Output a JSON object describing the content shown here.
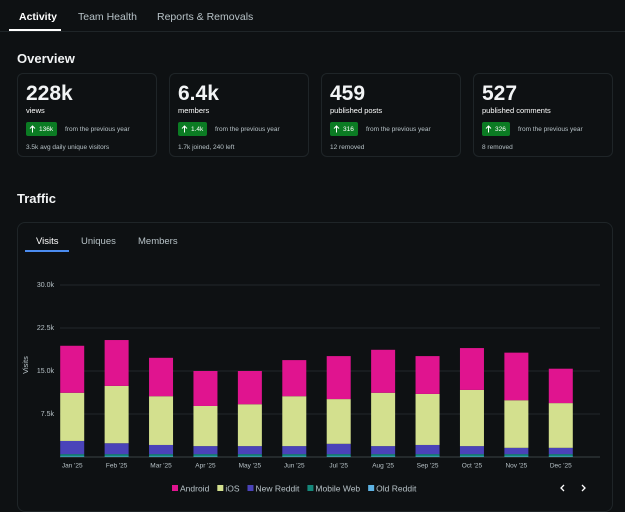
{
  "tabs": [
    "Activity",
    "Team Health",
    "Reports & Removals"
  ],
  "overview": {
    "title": "Overview",
    "cards": [
      {
        "value": "228k",
        "label": "views",
        "change": "136k",
        "change_label": "from the previous year",
        "note": "3.5k avg daily unique visitors"
      },
      {
        "value": "6.4k",
        "label": "members",
        "change": "1.4k",
        "change_label": "from the previous year",
        "note": "1.7k joined, 240 left"
      },
      {
        "value": "459",
        "label": "published posts",
        "change": "316",
        "change_label": "from the previous year",
        "note": "12 removed"
      },
      {
        "value": "527",
        "label": "published comments",
        "change": "326",
        "change_label": "from the previous year",
        "note": "8 removed"
      }
    ]
  },
  "traffic": {
    "title": "Traffic",
    "tabs": [
      "Visits",
      "Uniques",
      "Members"
    ]
  },
  "chart_data": {
    "type": "stacked_bar",
    "y_label": "Visits",
    "categories": [
      "Jan '25",
      "Feb '25",
      "Mar '25",
      "Apr '25",
      "May '25",
      "Jun '25",
      "Jul '25",
      "Aug '25",
      "Sep '25",
      "Oct '25",
      "Nov '25",
      "Dec '25"
    ],
    "series": [
      {
        "name": "Android",
        "color": "#e0148f",
        "values": [
          8200,
          8000,
          6700,
          6100,
          5800,
          6300,
          7500,
          7500,
          6600,
          7300,
          8300,
          6000
        ]
      },
      {
        "name": "iOS",
        "color": "#d3e08e",
        "values": [
          8400,
          10000,
          8500,
          7000,
          7300,
          8700,
          7800,
          9300,
          8900,
          9800,
          8300,
          7800
        ]
      },
      {
        "name": "New Reddit",
        "color": "#4a43b9",
        "values": [
          2300,
          1900,
          1600,
          1400,
          1400,
          1400,
          1800,
          1400,
          1600,
          1400,
          1100,
          1100
        ]
      },
      {
        "name": "Mobile Web",
        "color": "#15877a",
        "values": [
          400,
          400,
          400,
          400,
          400,
          400,
          400,
          400,
          400,
          400,
          400,
          400
        ]
      },
      {
        "name": "Old Reddit",
        "color": "#5db2e3",
        "values": [
          100,
          100,
          100,
          100,
          100,
          100,
          100,
          100,
          100,
          100,
          100,
          100
        ]
      }
    ],
    "ylim": [
      0,
      30000
    ],
    "yticks": [
      {
        "value": 7500,
        "label": "7.5k"
      },
      {
        "value": 15000,
        "label": "15.0k"
      },
      {
        "value": 22500,
        "label": "22.5k"
      },
      {
        "value": 30000,
        "label": "30.0k"
      }
    ],
    "grid": true
  }
}
